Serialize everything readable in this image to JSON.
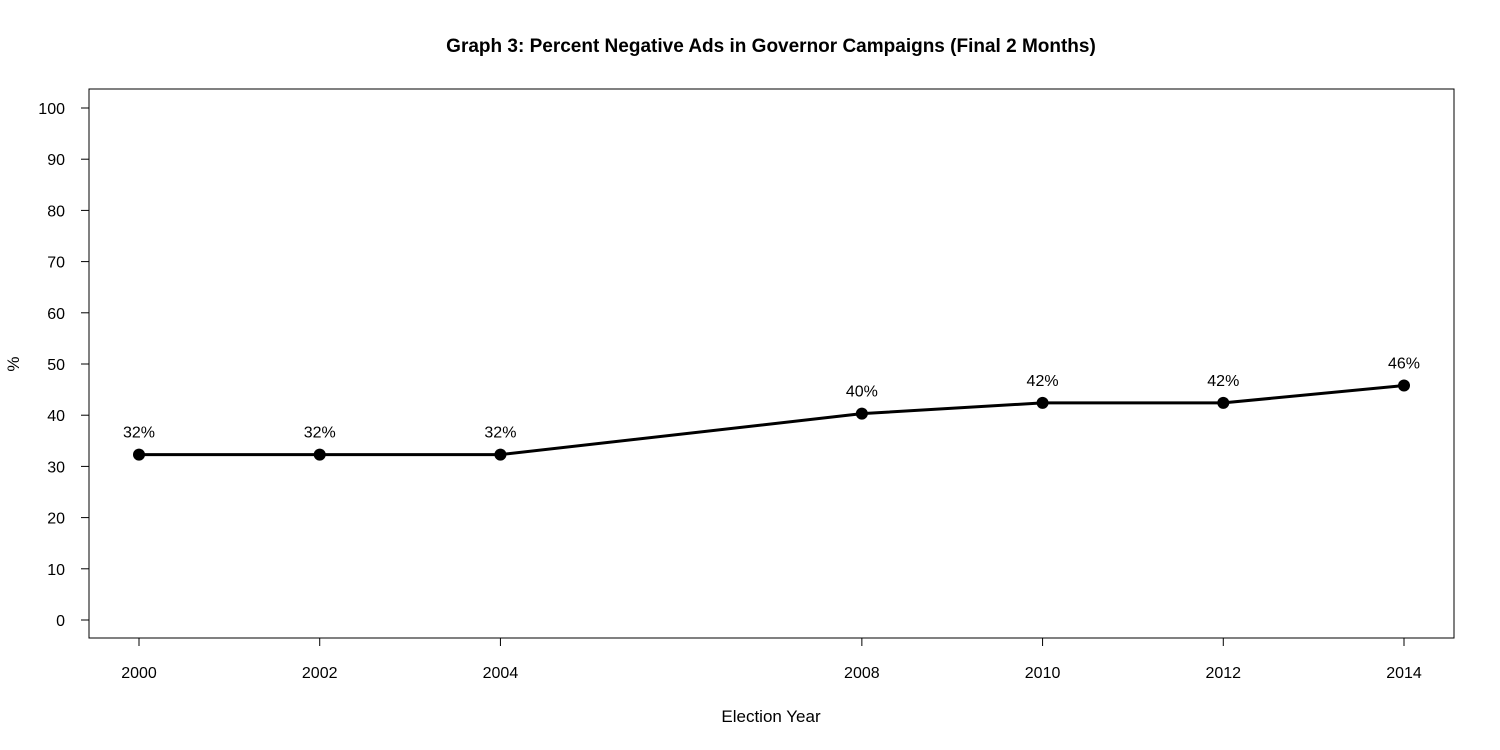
{
  "chart_data": {
    "type": "line",
    "title": "Graph 3: Percent Negative Ads in Governor Campaigns (Final 2 Months)",
    "xlabel": "Election Year",
    "ylabel": "%",
    "x": [
      2000,
      2002,
      2004,
      2008,
      2010,
      2012,
      2014
    ],
    "x_tick_labels": [
      "2000",
      "2002",
      "2004",
      "2008",
      "2010",
      "2012",
      "2014"
    ],
    "y_ticks": [
      0,
      10,
      20,
      30,
      40,
      50,
      60,
      70,
      80,
      90,
      100
    ],
    "y_tick_labels": [
      "0",
      "10",
      "20",
      "30",
      "40",
      "50",
      "60",
      "70",
      "80",
      "90",
      "100"
    ],
    "series": [
      {
        "name": "Percent Negative Ads",
        "values": [
          32.3,
          32.3,
          32.3,
          40.3,
          42.4,
          42.4,
          45.8
        ],
        "data_labels": [
          "32%",
          "32%",
          "32%",
          "40%",
          "42%",
          "42%",
          "46%"
        ],
        "color": "#000000"
      }
    ],
    "xlim": [
      2000,
      2014
    ],
    "ylim": [
      0,
      100
    ],
    "grid": false,
    "legend": "none"
  }
}
